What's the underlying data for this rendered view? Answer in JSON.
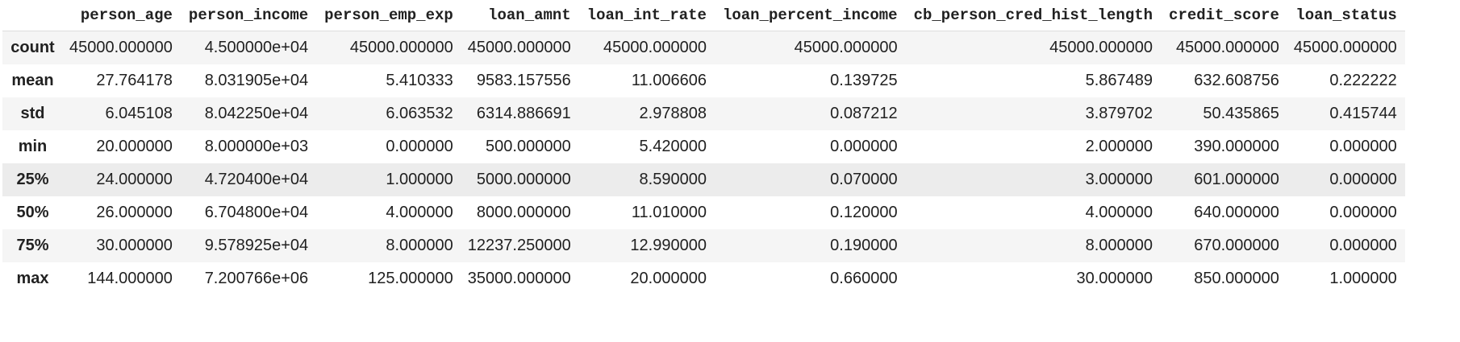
{
  "dataframe": {
    "columns": [
      "person_age",
      "person_income",
      "person_emp_exp",
      "loan_amnt",
      "loan_int_rate",
      "loan_percent_income",
      "cb_person_cred_hist_length",
      "credit_score",
      "loan_status"
    ],
    "rows": [
      {
        "label": "count",
        "values": [
          "45000.000000",
          "4.500000e+04",
          "45000.000000",
          "45000.000000",
          "45000.000000",
          "45000.000000",
          "45000.000000",
          "45000.000000",
          "45000.000000"
        ]
      },
      {
        "label": "mean",
        "values": [
          "27.764178",
          "8.031905e+04",
          "5.410333",
          "9583.157556",
          "11.006606",
          "0.139725",
          "5.867489",
          "632.608756",
          "0.222222"
        ]
      },
      {
        "label": "std",
        "values": [
          "6.045108",
          "8.042250e+04",
          "6.063532",
          "6314.886691",
          "2.978808",
          "0.087212",
          "3.879702",
          "50.435865",
          "0.415744"
        ]
      },
      {
        "label": "min",
        "values": [
          "20.000000",
          "8.000000e+03",
          "0.000000",
          "500.000000",
          "5.420000",
          "0.000000",
          "2.000000",
          "390.000000",
          "0.000000"
        ]
      },
      {
        "label": "25%",
        "values": [
          "24.000000",
          "4.720400e+04",
          "1.000000",
          "5000.000000",
          "8.590000",
          "0.070000",
          "3.000000",
          "601.000000",
          "0.000000"
        ]
      },
      {
        "label": "50%",
        "values": [
          "26.000000",
          "6.704800e+04",
          "4.000000",
          "8000.000000",
          "11.010000",
          "0.120000",
          "4.000000",
          "640.000000",
          "0.000000"
        ]
      },
      {
        "label": "75%",
        "values": [
          "30.000000",
          "9.578925e+04",
          "8.000000",
          "12237.250000",
          "12.990000",
          "0.190000",
          "8.000000",
          "670.000000",
          "0.000000"
        ]
      },
      {
        "label": "max",
        "values": [
          "144.000000",
          "7.200766e+06",
          "125.000000",
          "35000.000000",
          "20.000000",
          "0.660000",
          "30.000000",
          "850.000000",
          "1.000000"
        ]
      }
    ],
    "hovered_row": "25%"
  }
}
